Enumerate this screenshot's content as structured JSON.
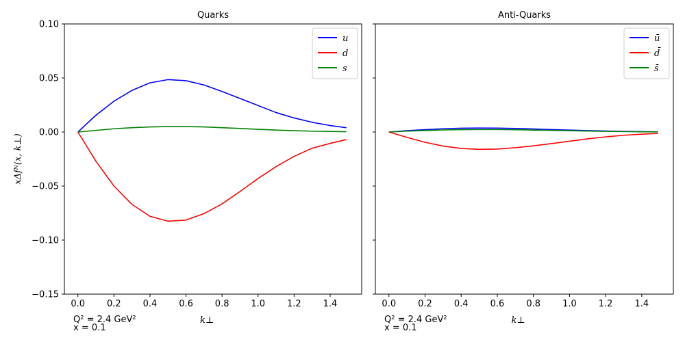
{
  "chart_data": [
    {
      "type": "line",
      "title": "Quarks",
      "xlabel": "k⊥",
      "ylabel": "xΔfᴺ(x, k⊥)",
      "annotations": [
        "Q² = 2.4 GeV²",
        "x = 0.1"
      ],
      "xlim": [
        -0.075,
        1.575
      ],
      "ylim": [
        -0.15,
        0.1
      ],
      "xticks": [
        "0.0",
        "0.2",
        "0.4",
        "0.6",
        "0.8",
        "1.0",
        "1.2",
        "1.4"
      ],
      "yticks": [
        "0.10",
        "0.05",
        "0.00",
        "−0.05",
        "−0.10",
        "−0.15"
      ],
      "legend_position": "top-right",
      "x": [
        0.0,
        0.1,
        0.2,
        0.3,
        0.4,
        0.5,
        0.6,
        0.7,
        0.8,
        0.9,
        1.0,
        1.1,
        1.2,
        1.3,
        1.4,
        1.49
      ],
      "series": [
        {
          "name": "u",
          "color": "#0000ff",
          "values": [
            0.0,
            0.0155,
            0.0285,
            0.0385,
            0.0455,
            0.0485,
            0.0475,
            0.0435,
            0.0375,
            0.031,
            0.0245,
            0.018,
            0.013,
            0.009,
            0.006,
            0.004
          ]
        },
        {
          "name": "d",
          "color": "#ff0000",
          "values": [
            0.0,
            -0.027,
            -0.05,
            -0.067,
            -0.078,
            -0.0825,
            -0.0815,
            -0.0755,
            -0.0665,
            -0.055,
            -0.043,
            -0.032,
            -0.0225,
            -0.015,
            -0.0105,
            -0.007
          ]
        },
        {
          "name": "s",
          "color": "#008000",
          "values": [
            0.0,
            0.0015,
            0.003,
            0.004,
            0.0047,
            0.005,
            0.005,
            0.0047,
            0.004,
            0.0033,
            0.0025,
            0.0018,
            0.0012,
            0.0008,
            0.0005,
            0.0003
          ]
        }
      ]
    },
    {
      "type": "line",
      "title": "Anti-Quarks",
      "xlabel": "k⊥",
      "ylabel": "",
      "annotations": [
        "Q² = 2.4 GeV²",
        "x = 0.1"
      ],
      "xlim": [
        -0.075,
        1.575
      ],
      "ylim": [
        -0.15,
        0.1
      ],
      "xticks": [
        "0.0",
        "0.2",
        "0.4",
        "0.6",
        "0.8",
        "1.0",
        "1.2",
        "1.4"
      ],
      "yticks": [],
      "legend_position": "top-right",
      "x": [
        0.0,
        0.1,
        0.2,
        0.3,
        0.4,
        0.5,
        0.6,
        0.7,
        0.8,
        0.9,
        1.0,
        1.1,
        1.2,
        1.3,
        1.4,
        1.49
      ],
      "series": [
        {
          "name": "ū",
          "color": "#0000ff",
          "values": [
            0.0,
            0.0012,
            0.0022,
            0.003,
            0.0035,
            0.0037,
            0.0036,
            0.0033,
            0.0028,
            0.0023,
            0.0018,
            0.0013,
            0.0009,
            0.0006,
            0.0004,
            0.0002
          ]
        },
        {
          "name": "d̄",
          "color": "#ff0000",
          "values": [
            0.0,
            -0.005,
            -0.0095,
            -0.013,
            -0.0152,
            -0.016,
            -0.0158,
            -0.0145,
            -0.0128,
            -0.0107,
            -0.0085,
            -0.0063,
            -0.0045,
            -0.003,
            -0.002,
            -0.0013
          ]
        },
        {
          "name": "s̄",
          "color": "#008000",
          "values": [
            0.0,
            0.0008,
            0.0014,
            0.0019,
            0.0022,
            0.0023,
            0.0023,
            0.0021,
            0.0018,
            0.0015,
            0.0012,
            0.0009,
            0.0006,
            0.0004,
            0.0002,
            0.0001
          ]
        }
      ]
    }
  ]
}
